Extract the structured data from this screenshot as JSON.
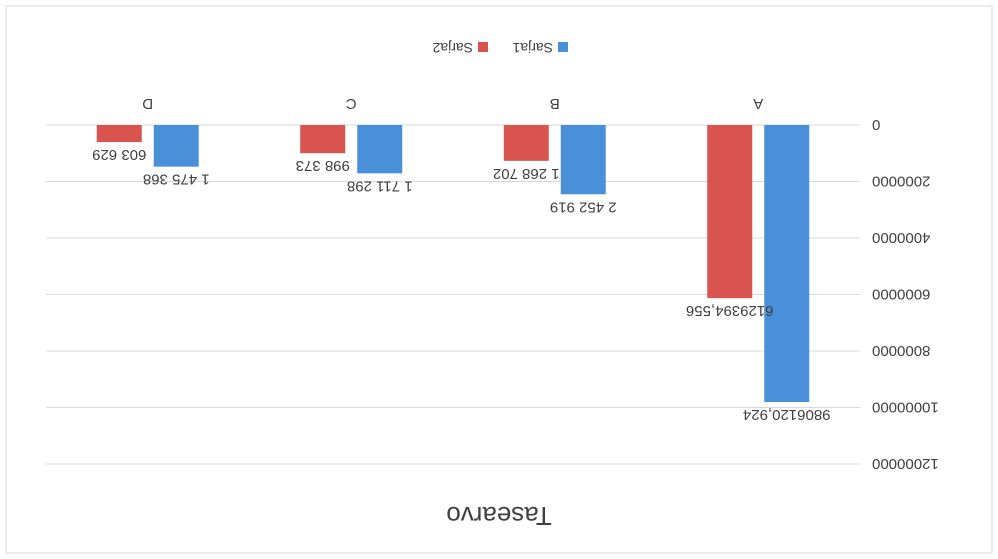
{
  "chart_data": {
    "type": "bar",
    "title": "Tasearvo",
    "categories": [
      "A",
      "B",
      "C",
      "D"
    ],
    "series": [
      {
        "name": "Sarja1",
        "color": "#4a90d9",
        "values": [
          9806120.924,
          2452919,
          1711298,
          1475368
        ],
        "labels": [
          "9806120,924",
          "2 452 919",
          "1 711 298",
          "1 475 368"
        ]
      },
      {
        "name": "Sarja2",
        "color": "#d9534f",
        "values": [
          6129394.556,
          1268702,
          998373,
          603629
        ],
        "labels": [
          "6129394,556",
          "1 268 702",
          "998 373",
          "603 629"
        ]
      }
    ],
    "ylim": [
      0,
      12000000
    ],
    "yticks": [
      "0",
      "2000000",
      "4000000",
      "6000000",
      "8000000",
      "10000000",
      "12000000"
    ],
    "grid": true,
    "legend_position": "bottom"
  }
}
